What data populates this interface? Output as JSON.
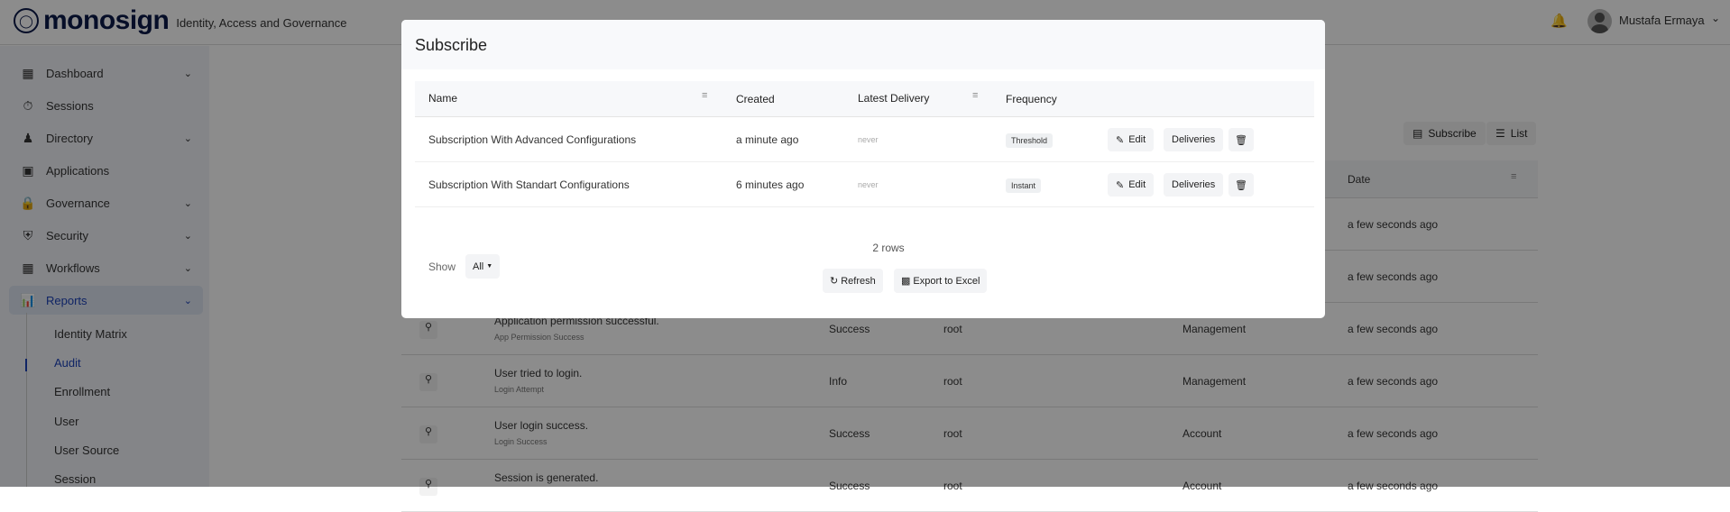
{
  "header": {
    "brand": "monosign",
    "tagline": "Identity, Access and Governance",
    "user_name": "Mustafa Ermaya",
    "bell_icon": "bell-icon"
  },
  "sidebar": {
    "items": [
      {
        "label": "Dashboard",
        "icon": "dashboard-icon",
        "chevron": true
      },
      {
        "label": "Sessions",
        "icon": "stopwatch-icon",
        "chevron": false
      },
      {
        "label": "Directory",
        "icon": "users-icon",
        "chevron": true
      },
      {
        "label": "Applications",
        "icon": "apps-icon",
        "chevron": false
      },
      {
        "label": "Governance",
        "icon": "lock-icon",
        "chevron": true
      },
      {
        "label": "Security",
        "icon": "shield-icon",
        "chevron": true
      },
      {
        "label": "Workflows",
        "icon": "workflow-icon",
        "chevron": true
      },
      {
        "label": "Reports",
        "icon": "reports-icon",
        "chevron": true,
        "active": true
      }
    ],
    "sub_items": [
      "Identity Matrix",
      "Audit",
      "Enrollment",
      "User",
      "User Source",
      "Session"
    ],
    "active_sub": "Audit"
  },
  "main": {
    "subscribe_label": "Subscribe",
    "list_label": "List",
    "date_header": "Date",
    "rows": [
      {
        "message": "",
        "type": "",
        "status": "",
        "user": "",
        "category": "",
        "date": "a few seconds ago"
      },
      {
        "message": "",
        "type": "",
        "status": "",
        "user": "",
        "category": "",
        "date": "a few seconds ago"
      },
      {
        "message": "Application permission successful.",
        "type": "App Permission Success",
        "status": "Success",
        "user": "root",
        "category": "Management",
        "date": "a few seconds ago"
      },
      {
        "message": "User tried to login.",
        "type": "Login Attempt",
        "status": "Info",
        "user": "root",
        "category": "Management",
        "date": "a few seconds ago"
      },
      {
        "message": "User login success.",
        "type": "Login Success",
        "status": "Success",
        "user": "root",
        "category": "Account",
        "date": "a few seconds ago"
      },
      {
        "message": "Session is generated.",
        "type": "",
        "status": "Success",
        "user": "root",
        "category": "Account",
        "date": "a few seconds ago"
      }
    ]
  },
  "modal": {
    "title": "Subscribe",
    "columns": {
      "name": "Name",
      "created": "Created",
      "latest_delivery": "Latest Delivery",
      "frequency": "Frequency"
    },
    "rows": [
      {
        "name": "Subscription With Advanced Configurations",
        "created": "a minute ago",
        "latest_delivery": "never",
        "frequency": "Threshold"
      },
      {
        "name": "Subscription With Standart Configurations",
        "created": "6 minutes ago",
        "latest_delivery": "never",
        "frequency": "Instant"
      }
    ],
    "edit_label": "Edit",
    "deliveries_label": "Deliveries",
    "row_count": "2 rows",
    "show_label": "Show",
    "show_value": "All",
    "refresh_label": "Refresh",
    "export_label": "Export to Excel"
  }
}
